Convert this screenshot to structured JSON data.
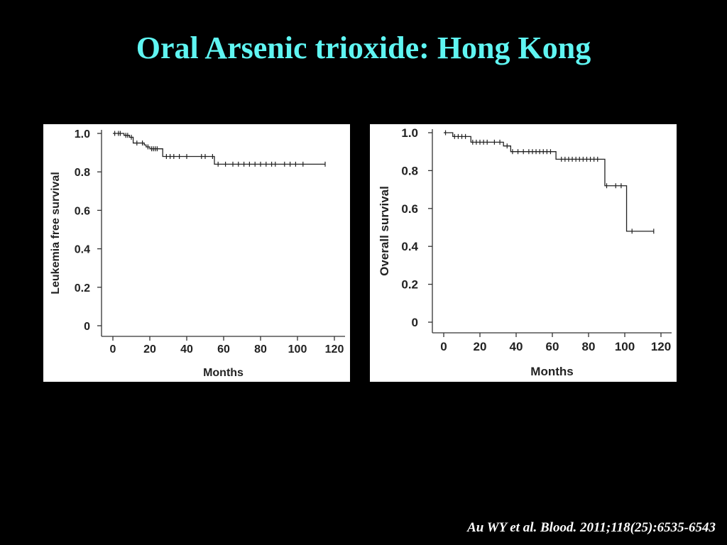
{
  "slide": {
    "title": "Oral Arsenic trioxide: Hong Kong",
    "citation": "Au WY et al. Blood. 2011;118(25):6535-6543",
    "title_color": "#5ff5f2"
  },
  "chart_data": [
    {
      "type": "line",
      "xlabel": "Months",
      "ylabel": "Leukemia free survival",
      "xlim": [
        0,
        120
      ],
      "ylim": [
        0,
        1.0
      ],
      "xticks": [
        "0",
        "20",
        "40",
        "60",
        "80",
        "100",
        "120"
      ],
      "yticks": [
        "0",
        "0.2",
        "0.4",
        "0.6",
        "0.8",
        "1.0"
      ],
      "step_x": [
        0,
        5,
        6,
        9,
        11,
        17,
        18,
        20,
        27,
        55,
        115
      ],
      "step_y": [
        1.0,
        1.0,
        0.99,
        0.98,
        0.95,
        0.94,
        0.93,
        0.92,
        0.88,
        0.84,
        0.84
      ],
      "censor_x": [
        1,
        3,
        4,
        7,
        8,
        10,
        13,
        16,
        19,
        21,
        22,
        23,
        24,
        29,
        31,
        33,
        36,
        40,
        48,
        50,
        54,
        57,
        61,
        65,
        68,
        71,
        74,
        77,
        80,
        83,
        86,
        88,
        93,
        96,
        99,
        103,
        115
      ],
      "grid": false
    },
    {
      "type": "line",
      "xlabel": "Months",
      "ylabel": "Overall survival",
      "xlim": [
        0,
        120
      ],
      "ylim": [
        0,
        1.0
      ],
      "xticks": [
        "0",
        "20",
        "40",
        "60",
        "80",
        "100",
        "120"
      ],
      "yticks": [
        "0",
        "0.2",
        "0.4",
        "0.6",
        "0.8",
        "1.0"
      ],
      "step_x": [
        0,
        5,
        15,
        33,
        37,
        62,
        89,
        101,
        116
      ],
      "step_y": [
        1.0,
        0.98,
        0.95,
        0.93,
        0.9,
        0.86,
        0.72,
        0.48,
        0.48
      ],
      "censor_x": [
        1,
        6,
        8,
        10,
        12,
        16,
        18,
        20,
        22,
        24,
        28,
        31,
        35,
        38,
        41,
        44,
        47,
        49,
        51,
        53,
        55,
        57,
        59,
        65,
        67,
        69,
        71,
        73,
        75,
        77,
        79,
        81,
        83,
        85,
        90,
        95,
        98,
        104,
        116
      ],
      "grid": false
    }
  ]
}
